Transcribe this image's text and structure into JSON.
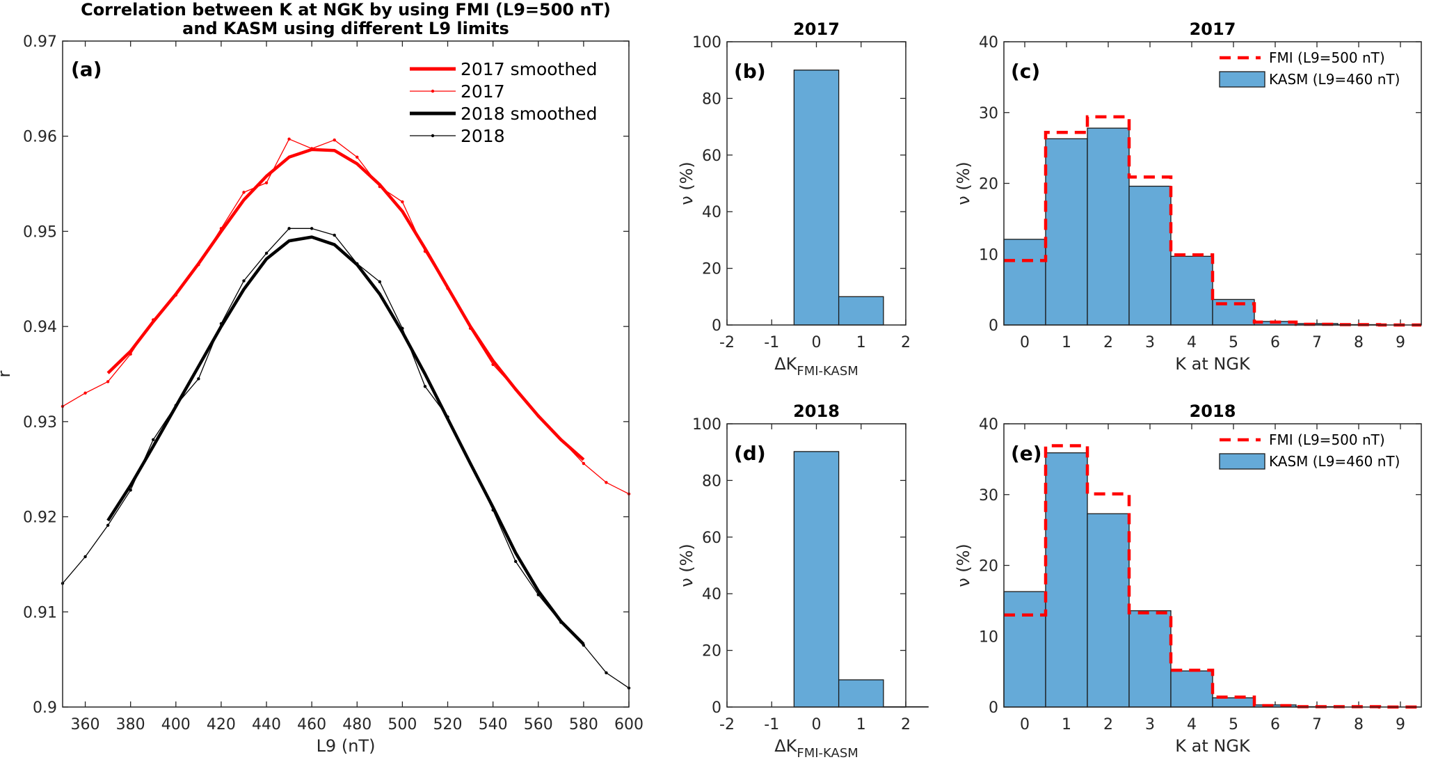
{
  "figure_title": [
    "Correlation between K at NGK by using FMI (L9=500 nT)",
    "and KASM using different L9 limits"
  ],
  "colors": {
    "red": "#ff0000",
    "black": "#000000",
    "bar": "#65aad8",
    "axis": "#262626"
  },
  "chart_data": [
    {
      "id": "a",
      "type": "line",
      "panel_label": "(a)",
      "xlabel": "L9 (nT)",
      "ylabel": "r",
      "xlim": [
        350,
        600
      ],
      "ylim": [
        0.9,
        0.97
      ],
      "xticks": [
        360,
        380,
        400,
        420,
        440,
        460,
        480,
        500,
        520,
        540,
        560,
        580,
        600
      ],
      "yticks": [
        0.9,
        0.91,
        0.92,
        0.93,
        0.94,
        0.95,
        0.96,
        0.97
      ],
      "ytick_labels": [
        "0.9",
        "0.91",
        "0.92",
        "0.93",
        "0.94",
        "0.95",
        "0.96",
        "0.97"
      ],
      "legend_position": "top-right",
      "series": [
        {
          "name": "2017 smoothed",
          "color": "#ff0000",
          "style": "thick",
          "x": [
            370,
            380,
            390,
            400,
            410,
            420,
            430,
            440,
            450,
            460,
            470,
            480,
            490,
            500,
            510,
            520,
            530,
            540,
            550,
            560,
            570,
            580
          ],
          "y": [
            0.9351,
            0.9374,
            0.9405,
            0.9434,
            0.9466,
            0.95,
            0.9533,
            0.9558,
            0.9578,
            0.9586,
            0.9585,
            0.9571,
            0.9549,
            0.9521,
            0.9482,
            0.9441,
            0.94,
            0.9364,
            0.9334,
            0.9306,
            0.9281,
            0.926
          ]
        },
        {
          "name": "2017",
          "color": "#ff0000",
          "style": "thin-marker",
          "x": [
            350,
            360,
            370,
            380,
            390,
            400,
            410,
            420,
            430,
            440,
            450,
            460,
            470,
            480,
            490,
            500,
            510,
            520,
            530,
            540,
            550,
            560,
            570,
            580,
            590,
            600
          ],
          "y": [
            0.9316,
            0.933,
            0.9342,
            0.9371,
            0.9407,
            0.9433,
            0.9465,
            0.9503,
            0.9541,
            0.9551,
            0.9597,
            0.9587,
            0.9596,
            0.9578,
            0.9547,
            0.9531,
            0.9479,
            0.944,
            0.9398,
            0.936,
            0.9334,
            0.9306,
            0.9281,
            0.9256,
            0.9236,
            0.9224
          ]
        },
        {
          "name": "2018 smoothed",
          "color": "#000000",
          "style": "thick",
          "x": [
            370,
            380,
            390,
            400,
            410,
            420,
            430,
            440,
            450,
            460,
            470,
            480,
            490,
            500,
            510,
            520,
            530,
            540,
            550,
            560,
            570,
            580
          ],
          "y": [
            0.9196,
            0.9233,
            0.9274,
            0.9316,
            0.9358,
            0.94,
            0.9439,
            0.9471,
            0.949,
            0.9494,
            0.9486,
            0.9465,
            0.9434,
            0.9394,
            0.935,
            0.9303,
            0.9256,
            0.921,
            0.9162,
            0.9122,
            0.909,
            0.9066
          ]
        },
        {
          "name": "2018",
          "color": "#000000",
          "style": "thin-marker",
          "x": [
            350,
            360,
            370,
            380,
            390,
            400,
            410,
            420,
            430,
            440,
            450,
            460,
            470,
            480,
            490,
            500,
            510,
            520,
            530,
            540,
            550,
            560,
            570,
            580,
            590,
            600
          ],
          "y": [
            0.913,
            0.9158,
            0.9191,
            0.9228,
            0.9281,
            0.9317,
            0.9345,
            0.9403,
            0.9448,
            0.9477,
            0.9503,
            0.9503,
            0.9496,
            0.9466,
            0.9447,
            0.9398,
            0.9337,
            0.9305,
            0.9256,
            0.9207,
            0.9153,
            0.9118,
            0.9089,
            0.9065,
            0.9036,
            0.902
          ]
        }
      ]
    },
    {
      "id": "b",
      "type": "bar",
      "panel_label": "(b)",
      "title": "2017",
      "xlabel": "ΔK",
      "xlabel_sub": "FMI-KASM",
      "ylabel": "ν (%)",
      "xlim": [
        -2,
        2
      ],
      "ylim": [
        0,
        100
      ],
      "xticks": [
        -2,
        -1,
        0,
        1,
        2
      ],
      "yticks": [
        0,
        20,
        40,
        60,
        80,
        100
      ],
      "categories": [
        0,
        1
      ],
      "values": [
        90.0,
        10.0
      ]
    },
    {
      "id": "c",
      "type": "bar",
      "panel_label": "(c)",
      "title": "2017",
      "xlabel": "K at NGK",
      "ylabel": "ν (%)",
      "xlim": [
        -0.5,
        9.5
      ],
      "ylim": [
        0,
        40
      ],
      "xticks": [
        0,
        1,
        2,
        3,
        4,
        5,
        6,
        7,
        8,
        9
      ],
      "yticks": [
        0,
        10,
        20,
        30,
        40
      ],
      "legend_position": "top-right",
      "categories": [
        0,
        1,
        2,
        3,
        4,
        5,
        6,
        7,
        8,
        9
      ],
      "series": [
        {
          "name": "KASM (L9=460 nT)",
          "style": "bar",
          "values": [
            12.1,
            26.3,
            27.8,
            19.6,
            9.7,
            3.6,
            0.5,
            0.2,
            0.05,
            0
          ]
        },
        {
          "name": "FMI (L9=500 nT)",
          "style": "dashed-step",
          "values": [
            9.1,
            27.2,
            29.4,
            20.9,
            9.9,
            3.0,
            0.4,
            0.1,
            0.05,
            0
          ]
        }
      ]
    },
    {
      "id": "d",
      "type": "bar",
      "panel_label": "(d)",
      "title": "2018",
      "xlabel": "ΔK",
      "xlabel_sub": "FMI-KASM",
      "ylabel": "ν (%)",
      "xlim": [
        -2,
        2
      ],
      "ylim": [
        0,
        100
      ],
      "xticks": [
        -2,
        -1,
        0,
        1,
        2
      ],
      "yticks": [
        0,
        20,
        40,
        60,
        80,
        100
      ],
      "categories": [
        0,
        1,
        2
      ],
      "values": [
        90.2,
        9.6,
        0.1
      ]
    },
    {
      "id": "e",
      "type": "bar",
      "panel_label": "(e)",
      "title": "2018",
      "xlabel": "K at NGK",
      "ylabel": "ν (%)",
      "xlim": [
        -0.5,
        9.5
      ],
      "ylim": [
        0,
        40
      ],
      "xticks": [
        0,
        1,
        2,
        3,
        4,
        5,
        6,
        7,
        8,
        9
      ],
      "yticks": [
        0,
        10,
        20,
        30,
        40
      ],
      "legend_position": "top-right",
      "categories": [
        0,
        1,
        2,
        3,
        4,
        5,
        6,
        7,
        8,
        9
      ],
      "series": [
        {
          "name": "KASM (L9=460 nT)",
          "style": "bar",
          "values": [
            16.3,
            35.9,
            27.3,
            13.6,
            5.1,
            1.3,
            0.3,
            0.05,
            0,
            0
          ]
        },
        {
          "name": "FMI (L9=500 nT)",
          "style": "dashed-step",
          "values": [
            13.0,
            36.9,
            30.1,
            13.3,
            5.2,
            1.4,
            0.2,
            0.05,
            0.05,
            0
          ]
        }
      ]
    }
  ]
}
